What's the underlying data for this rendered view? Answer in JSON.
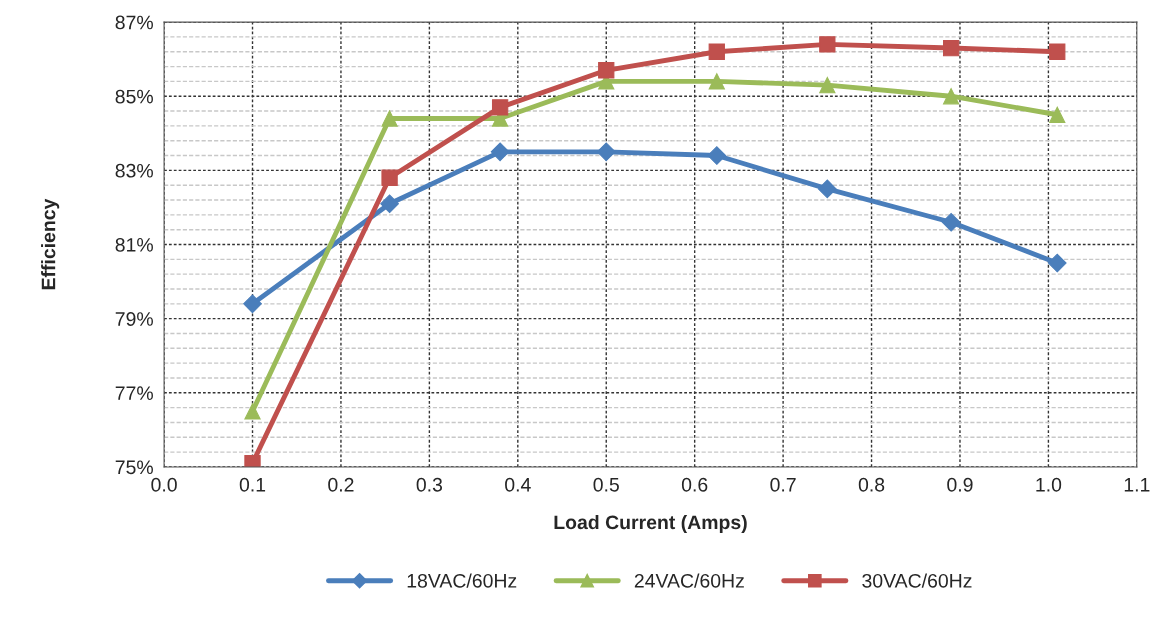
{
  "chart_data": {
    "type": "line",
    "xlabel": "Load Current (Amps)",
    "ylabel": "Efficiency",
    "x": [
      0.1,
      0.255,
      0.38,
      0.5,
      0.625,
      0.75,
      0.89,
      1.01
    ],
    "series": [
      {
        "name": "18VAC/60Hz",
        "color": "#4a7ebb",
        "marker": "diamond",
        "values": [
          79.4,
          82.1,
          83.5,
          83.5,
          83.4,
          82.5,
          81.6,
          80.5
        ]
      },
      {
        "name": "24VAC/60Hz",
        "color": "#9bbb59",
        "marker": "triangle",
        "values": [
          76.5,
          84.4,
          84.4,
          85.4,
          85.4,
          85.3,
          85.0,
          84.5
        ]
      },
      {
        "name": "30VAC/60Hz",
        "color": "#c0504d",
        "marker": "square",
        "values": [
          75.1,
          82.8,
          84.7,
          85.7,
          86.2,
          86.4,
          86.3,
          86.2
        ]
      }
    ],
    "xlim": [
      0,
      1.1
    ],
    "xticks": [
      {
        "value": 0,
        "label": "0.0"
      },
      0.1,
      0.2,
      0.3,
      0.4,
      0.5,
      0.6,
      0.7,
      0.8,
      0.9,
      {
        "value": 1,
        "label": "1.0"
      },
      1.1
    ],
    "ylim": [
      75,
      87
    ],
    "yticks": [
      {
        "value": 75,
        "label": "75%"
      },
      {
        "value": 75.4,
        "label": null
      },
      {
        "value": 75.8,
        "label": null
      },
      {
        "value": 76.2,
        "label": null
      },
      {
        "value": 76.6,
        "label": null
      },
      {
        "value": 77,
        "label": "77%"
      },
      {
        "value": 77.4,
        "label": null
      },
      {
        "value": 77.8,
        "label": null
      },
      {
        "value": 78.2,
        "label": null
      },
      {
        "value": 78.6,
        "label": null
      },
      {
        "value": 79,
        "label": "79%"
      },
      {
        "value": 79.4,
        "label": null
      },
      {
        "value": 79.8,
        "label": null
      },
      {
        "value": 80.2,
        "label": null
      },
      {
        "value": 80.6,
        "label": null
      },
      {
        "value": 81,
        "label": "81%"
      },
      {
        "value": 81.4,
        "label": null
      },
      {
        "value": 81.8,
        "label": null
      },
      {
        "value": 82.2,
        "label": null
      },
      {
        "value": 82.6,
        "label": null
      },
      {
        "value": 83,
        "label": "83%"
      },
      {
        "value": 83.4,
        "label": null
      },
      {
        "value": 83.8,
        "label": null
      },
      {
        "value": 84.2,
        "label": null
      },
      {
        "value": 84.6,
        "label": null
      },
      {
        "value": 85,
        "label": "85%"
      },
      {
        "value": 85.4,
        "label": null
      },
      {
        "value": 85.8,
        "label": null
      },
      {
        "value": 86.2,
        "label": null
      },
      {
        "value": 86.6,
        "label": null
      },
      {
        "value": 87,
        "label": "87%"
      }
    ],
    "grid": true,
    "legend": "bottom",
    "line_style": "solid"
  }
}
